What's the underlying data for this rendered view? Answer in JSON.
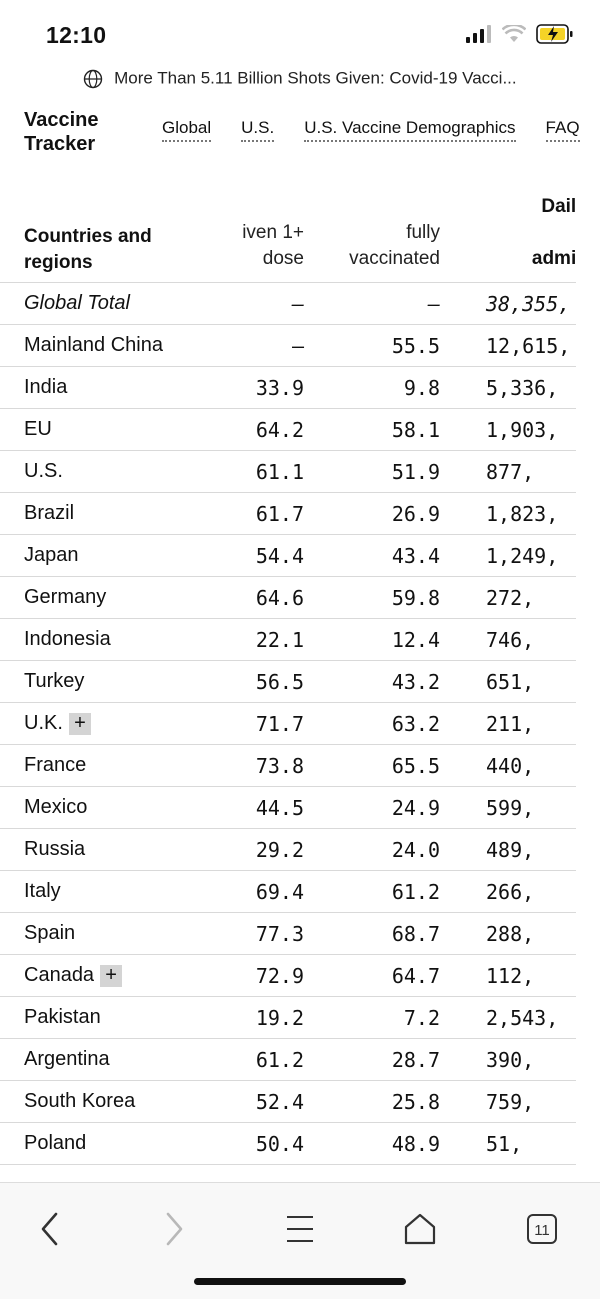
{
  "status": {
    "time": "12:10"
  },
  "url_bar": {
    "title": "More Than 5.11 Billion Shots Given: Covid-19 Vacci..."
  },
  "nav": {
    "brand_line1": "Vaccine",
    "brand_line2": "Tracker",
    "links": [
      "Global",
      "U.S.",
      "U.S. Vaccine Demographics",
      "FAQ"
    ]
  },
  "table": {
    "headers": {
      "country_1": "Countries and",
      "country_2": "regions",
      "dose_1": "iven 1+",
      "dose_2": "dose",
      "full_1": "fully",
      "full_2": "vaccinated",
      "daily_1": "Daily ra",
      "daily_2": "d",
      "daily_3": "administ"
    },
    "rows": [
      {
        "name": "Global Total",
        "dose": "–",
        "full": "–",
        "daily": "38,355,",
        "plus": ""
      },
      {
        "name": "Mainland China",
        "dose": "–",
        "full": "55.5",
        "daily": "12,615,",
        "plus": ""
      },
      {
        "name": "India",
        "dose": "33.9",
        "full": "9.8",
        "daily": "5,336,",
        "plus": ""
      },
      {
        "name": "EU",
        "dose": "64.2",
        "full": "58.1",
        "daily": "1,903,",
        "plus": ""
      },
      {
        "name": "U.S.",
        "dose": "61.1",
        "full": "51.9",
        "daily": "877,",
        "plus": ""
      },
      {
        "name": "Brazil",
        "dose": "61.7",
        "full": "26.9",
        "daily": "1,823,",
        "plus": ""
      },
      {
        "name": "Japan",
        "dose": "54.4",
        "full": "43.4",
        "daily": "1,249,",
        "plus": ""
      },
      {
        "name": "Germany",
        "dose": "64.6",
        "full": "59.8",
        "daily": "272,",
        "plus": ""
      },
      {
        "name": "Indonesia",
        "dose": "22.1",
        "full": "12.4",
        "daily": "746,",
        "plus": ""
      },
      {
        "name": "Turkey",
        "dose": "56.5",
        "full": "43.2",
        "daily": "651,",
        "plus": ""
      },
      {
        "name": "U.K.",
        "dose": "71.7",
        "full": "63.2",
        "daily": "211,",
        "plus": "+"
      },
      {
        "name": "France",
        "dose": "73.8",
        "full": "65.5",
        "daily": "440,",
        "plus": ""
      },
      {
        "name": "Mexico",
        "dose": "44.5",
        "full": "24.9",
        "daily": "599,",
        "plus": ""
      },
      {
        "name": "Russia",
        "dose": "29.2",
        "full": "24.0",
        "daily": "489,",
        "plus": ""
      },
      {
        "name": "Italy",
        "dose": "69.4",
        "full": "61.2",
        "daily": "266,",
        "plus": ""
      },
      {
        "name": "Spain",
        "dose": "77.3",
        "full": "68.7",
        "daily": "288,",
        "plus": ""
      },
      {
        "name": "Canada",
        "dose": "72.9",
        "full": "64.7",
        "daily": "112,",
        "plus": "+"
      },
      {
        "name": "Pakistan",
        "dose": "19.2",
        "full": "7.2",
        "daily": "2,543,",
        "plus": ""
      },
      {
        "name": "Argentina",
        "dose": "61.2",
        "full": "28.7",
        "daily": "390,",
        "plus": ""
      },
      {
        "name": "South Korea",
        "dose": "52.4",
        "full": "25.8",
        "daily": "759,",
        "plus": ""
      },
      {
        "name": "Poland",
        "dose": "50.4",
        "full": "48.9",
        "daily": "51,",
        "plus": ""
      }
    ]
  },
  "toolbar": {
    "tabs_count": "11"
  },
  "icons": {
    "signal": "signal-icon",
    "wifi": "wifi-icon",
    "battery": "battery-charging-icon",
    "globe": "globe-icon",
    "back": "back-chevron-icon",
    "forward": "forward-chevron-icon",
    "menu": "menu-icon",
    "home": "home-icon",
    "tabs": "tabs-icon"
  },
  "colors": {
    "battery": "#f5d327",
    "rule": "#d9d9d9",
    "plus_bg": "#d4d4d4"
  }
}
